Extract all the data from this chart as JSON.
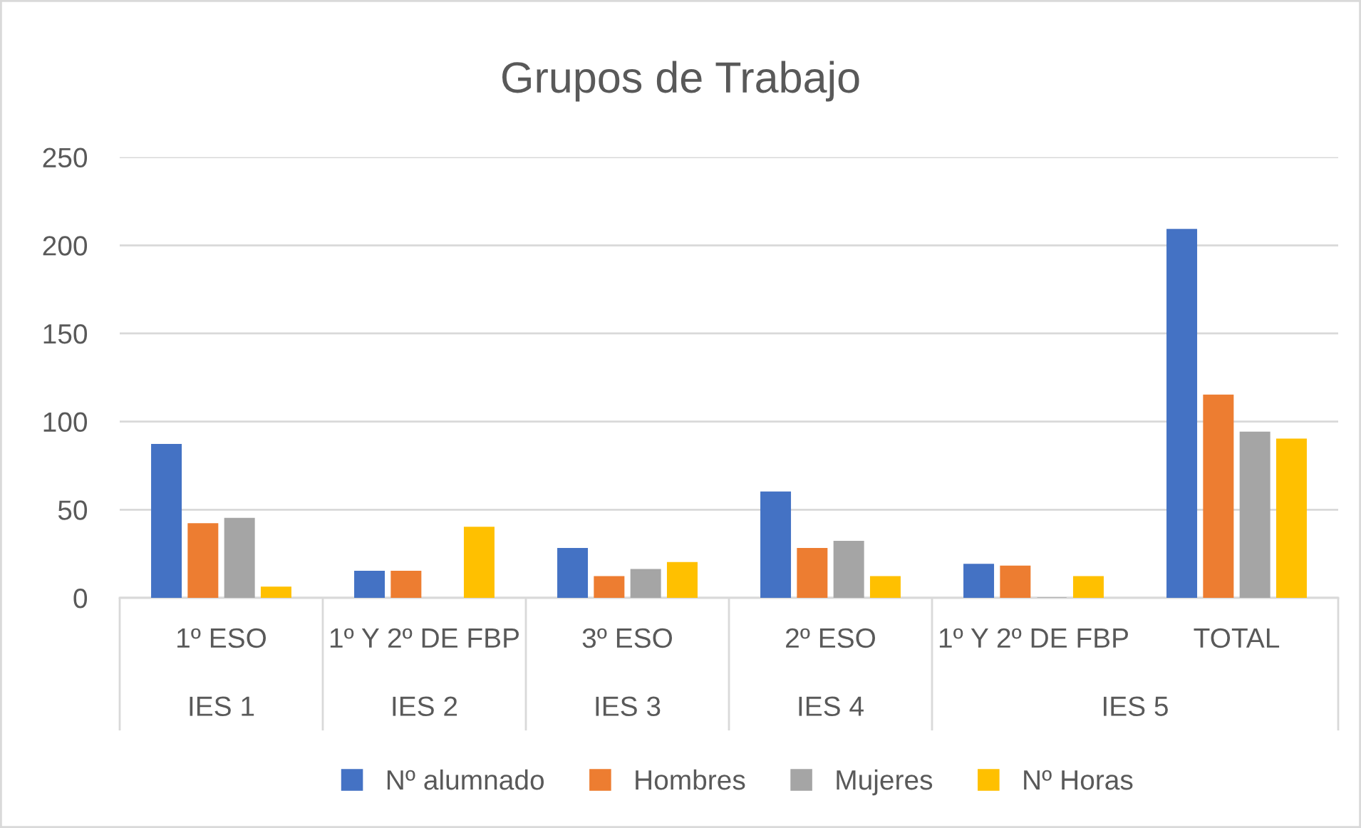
{
  "chart_data": {
    "type": "bar",
    "title": "Grupos de Trabajo",
    "categories": [
      "1º ESO",
      "1º Y 2º DE FBP",
      "3º ESO",
      "2º ESO",
      "1º Y 2º DE FBP",
      "TOTAL"
    ],
    "annotations": [
      "IES 1",
      "IES 2",
      "IES 3",
      "IES 4",
      "IES 5"
    ],
    "series": [
      {
        "name": "Nº alumnado",
        "color": "#4472c4",
        "values": [
          87,
          15,
          28,
          60,
          19,
          209
        ]
      },
      {
        "name": "Hombres",
        "color": "#ed7d31",
        "values": [
          42,
          15,
          12,
          28,
          18,
          115
        ]
      },
      {
        "name": "Mujeres",
        "color": "#a5a5a5",
        "values": [
          45,
          null,
          16,
          32,
          0,
          94
        ]
      },
      {
        "name": "Nº Horas",
        "color": "#ffc000",
        "values": [
          6,
          40,
          20,
          12,
          12,
          90
        ]
      }
    ],
    "ylim": [
      0,
      250
    ],
    "yticks": [
      0,
      50,
      100,
      150,
      200,
      250
    ],
    "grid": "y",
    "legend": "bottom"
  }
}
